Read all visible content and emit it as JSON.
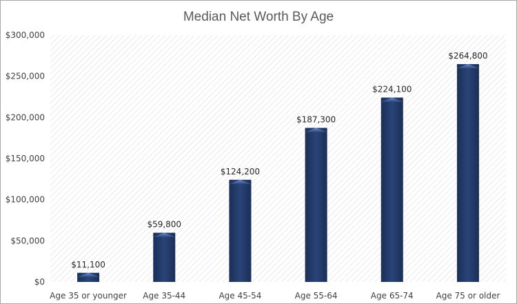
{
  "chart_data": {
    "type": "bar",
    "title": "Median Net Worth By Age",
    "xlabel": "",
    "ylabel": "",
    "categories": [
      "Age 35 or younger",
      "Age 35-44",
      "Age 45-54",
      "Age 55-64",
      "Age 65-74",
      "Age 75 or older"
    ],
    "values": [
      11100,
      59800,
      124200,
      187300,
      224100,
      264800
    ],
    "data_labels": [
      "$11,100",
      "$59,800",
      "$124,200",
      "$187,300",
      "$224,100",
      "$264,800"
    ],
    "ylim": [
      0,
      300000
    ],
    "y_ticks": [
      0,
      50000,
      100000,
      150000,
      200000,
      250000,
      300000
    ],
    "y_tick_labels": [
      "$0",
      "$50,000",
      "$100,000",
      "$150,000",
      "$200,000",
      "$250,000",
      "$300,000"
    ],
    "grid": "diagonal hatched plot background",
    "legend": "none",
    "colors": {
      "bar": "#203864",
      "bar_highlight": "#4a6aa8",
      "title": "#595959",
      "tick_text": "#404040",
      "hatch": "#d9d9d9"
    }
  }
}
